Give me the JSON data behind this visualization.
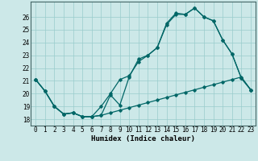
{
  "xlabel": "Humidex (Indice chaleur)",
  "bg_color": "#cce8e8",
  "grid_color": "#99cccc",
  "line_color": "#006666",
  "xlim": [
    -0.5,
    23.5
  ],
  "ylim": [
    17.5,
    27.2
  ],
  "xticks": [
    0,
    1,
    2,
    3,
    4,
    5,
    6,
    7,
    8,
    9,
    10,
    11,
    12,
    13,
    14,
    15,
    16,
    17,
    18,
    19,
    20,
    21,
    22,
    23
  ],
  "yticks": [
    18,
    19,
    20,
    21,
    22,
    23,
    24,
    25,
    26
  ],
  "line1_x": [
    0,
    1,
    2,
    3,
    4,
    5,
    6,
    7,
    8,
    9,
    10,
    11,
    12,
    13,
    14,
    15,
    16,
    17,
    18,
    19,
    20,
    21,
    22,
    23
  ],
  "line1_y": [
    21.1,
    20.2,
    19.0,
    18.4,
    18.5,
    18.2,
    18.2,
    18.3,
    18.5,
    18.7,
    18.9,
    19.1,
    19.3,
    19.5,
    19.7,
    19.9,
    20.1,
    20.3,
    20.5,
    20.7,
    20.9,
    21.1,
    21.3,
    20.3
  ],
  "line2_x": [
    0,
    1,
    2,
    3,
    4,
    5,
    6,
    7,
    8,
    9,
    10,
    11,
    12,
    13,
    14,
    15,
    16,
    17,
    18,
    19,
    20,
    21,
    22,
    23
  ],
  "line2_y": [
    21.1,
    20.2,
    19.0,
    18.4,
    18.5,
    18.2,
    18.2,
    19.0,
    20.0,
    21.1,
    21.4,
    22.5,
    23.0,
    23.6,
    25.4,
    26.2,
    26.2,
    26.7,
    26.0,
    25.7,
    24.2,
    23.1,
    21.2,
    20.3
  ],
  "line3_x": [
    0,
    1,
    2,
    3,
    4,
    5,
    6,
    7,
    8,
    9,
    10,
    11,
    12,
    13,
    14,
    15,
    16,
    17,
    18,
    19,
    20,
    21,
    22,
    23
  ],
  "line3_y": [
    21.1,
    20.2,
    19.0,
    18.4,
    18.5,
    18.2,
    18.2,
    18.3,
    19.9,
    19.1,
    21.3,
    22.7,
    23.0,
    23.6,
    25.5,
    26.3,
    26.2,
    26.7,
    26.0,
    25.7,
    24.2,
    23.1,
    21.2,
    20.3
  ],
  "xlabel_fontsize": 6.5,
  "tick_fontsize": 5.5
}
